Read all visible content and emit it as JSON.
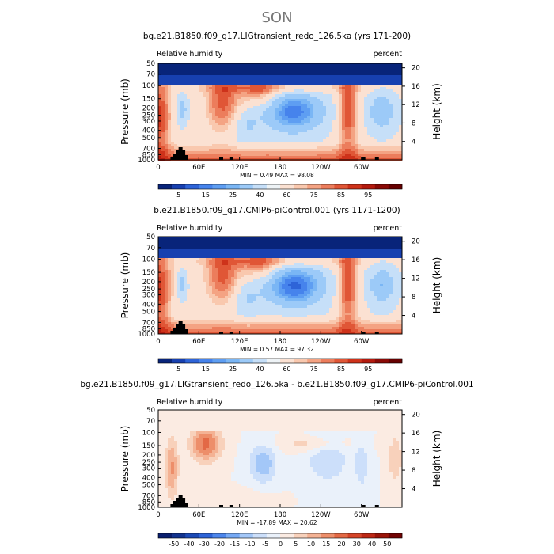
{
  "figure": {
    "season": "SON"
  },
  "colors": {
    "cmap_abs": [
      "#08247a",
      "#1740b0",
      "#2e64d8",
      "#4683ec",
      "#5e9ef2",
      "#7ab6f5",
      "#9ccaf8",
      "#c6dff8",
      "#eef3f6",
      "#fbe1d2",
      "#f9c8ae",
      "#f4a383",
      "#ec7d5c",
      "#e05636",
      "#ce321a",
      "#b31a0e",
      "#8a0a06",
      "#660000"
    ],
    "cmap_diff": [
      "#0a1f6f",
      "#12338f",
      "#1c4ab6",
      "#2e64d8",
      "#4d86ec",
      "#76a9f4",
      "#a3c7f8",
      "#ccdffa",
      "#eaf1fa",
      "#fbebe2",
      "#f8d1bb",
      "#f4b294",
      "#ed8e6a",
      "#e36945",
      "#d54428",
      "#bd2815",
      "#9a1409",
      "#720404"
    ],
    "topo": "#000000",
    "axis": "#000000"
  },
  "chart_data": [
    {
      "type": "heatmap",
      "title": "bg.e21.B1850.f09_g17.LIGtransient_redo_126.5ka (yrs 171-200)",
      "left_label": "Relative humidity",
      "right_label": "percent",
      "ylabel": "Pressure (mb)",
      "ylabel_right": "Height (km)",
      "xticks": [
        "0",
        "60E",
        "120E",
        "180",
        "120W",
        "60W"
      ],
      "yticks": [
        "50",
        "70",
        "100",
        "150",
        "200",
        "250",
        "300",
        "400",
        "500",
        "700",
        "850",
        "1000"
      ],
      "yticks_right": [
        "20",
        "16",
        "12",
        "8",
        "4"
      ],
      "minmax": "MIN =    0.49   MAX =   98.08",
      "colorbar_labels": [
        "5",
        "15",
        "25",
        "40",
        "60",
        "75",
        "85",
        "95"
      ],
      "levels": [
        5,
        10,
        15,
        20,
        25,
        30,
        40,
        50,
        60,
        65,
        70,
        75,
        80,
        85,
        90,
        95
      ],
      "x_range": [
        0,
        360
      ],
      "y_range": [
        1000,
        50
      ]
    },
    {
      "type": "heatmap",
      "title": "b.e21.B1850.f09_g17.CMIP6-piControl.001 (yrs 1171-1200)",
      "left_label": "Relative humidity",
      "right_label": "percent",
      "ylabel": "Pressure (mb)",
      "ylabel_right": "Height (km)",
      "xticks": [
        "0",
        "60E",
        "120E",
        "180",
        "120W",
        "60W"
      ],
      "yticks": [
        "50",
        "70",
        "100",
        "150",
        "200",
        "250",
        "300",
        "400",
        "500",
        "700",
        "850",
        "1000"
      ],
      "yticks_right": [
        "20",
        "16",
        "12",
        "8",
        "4"
      ],
      "minmax": "MIN =    0.57   MAX =   97.32",
      "colorbar_labels": [
        "5",
        "15",
        "25",
        "40",
        "60",
        "75",
        "85",
        "95"
      ],
      "levels": [
        5,
        10,
        15,
        20,
        25,
        30,
        40,
        50,
        60,
        65,
        70,
        75,
        80,
        85,
        90,
        95
      ],
      "x_range": [
        0,
        360
      ],
      "y_range": [
        1000,
        50
      ]
    },
    {
      "type": "heatmap",
      "title": "bg.e21.B1850.f09_g17.LIGtransient_redo_126.5ka - b.e21.B1850.f09_g17.CMIP6-piControl.001",
      "left_label": "Relative humidity",
      "right_label": "percent",
      "ylabel": "Pressure (mb)",
      "ylabel_right": "Height (km)",
      "xticks": [
        "0",
        "60E",
        "120E",
        "180",
        "120W",
        "60W"
      ],
      "yticks": [
        "50",
        "70",
        "100",
        "150",
        "200",
        "250",
        "300",
        "400",
        "500",
        "700",
        "850",
        "1000"
      ],
      "yticks_right": [
        "20",
        "16",
        "12",
        "8",
        "4"
      ],
      "minmax": "MIN =  -17.89   MAX =   20.62",
      "colorbar_labels": [
        "-50",
        "-40",
        "-30",
        "-20",
        "-15",
        "-10",
        "-5",
        "0",
        "5",
        "10",
        "15",
        "20",
        "30",
        "40",
        "50"
      ],
      "levels": [
        -50,
        -40,
        -30,
        -20,
        -15,
        -10,
        -5,
        0,
        5,
        10,
        15,
        20,
        30,
        40,
        50
      ],
      "x_range": [
        0,
        360
      ],
      "y_range": [
        1000,
        50
      ]
    }
  ]
}
